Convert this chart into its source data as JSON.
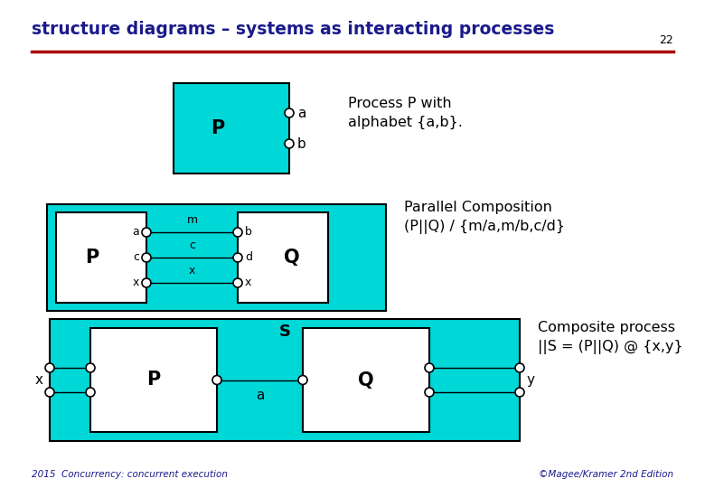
{
  "title": "structure diagrams – systems as interacting processes",
  "title_color": "#1a1a8c",
  "title_fontsize": 13.5,
  "bg_color": "#ffffff",
  "cyan_color": "#00d8d8",
  "footer_left": "2015  Concurrency: concurrent execution",
  "footer_right": "©Magee/Kramer 2nd Edition",
  "page_number": "22",
  "footer_color": "#1a1a8c",
  "footer_fontsize": 7.5,
  "desc1": "Process P with\nalphabet {a,b}.",
  "desc2": "Parallel Composition\n(P||Q) / {m/a,m/b,c/d}",
  "desc3": "Composite process\n||S = (P||Q) @ {x,y}",
  "red_line_color": "#aa0000"
}
